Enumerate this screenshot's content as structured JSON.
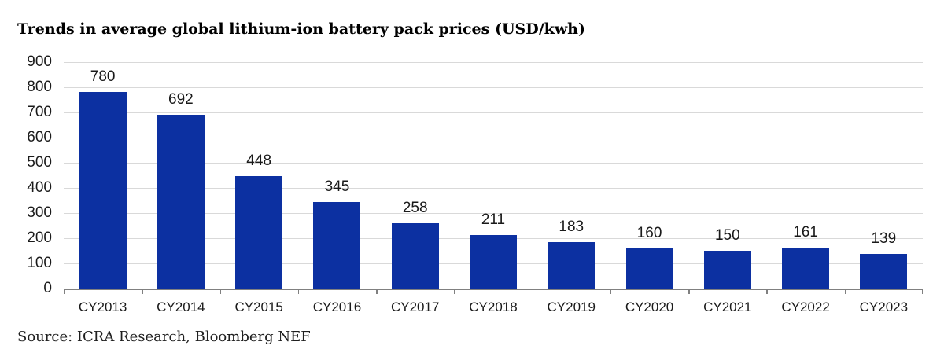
{
  "title": "Trends in average global lithium-ion battery pack prices (USD/kwh)",
  "source": "Source: ICRA Research, Bloomberg NEF",
  "colors": {
    "bar": "#0c30a1",
    "gridline": "#d9d9d9",
    "axis": "#808080",
    "label_text": "#1a1a1a",
    "title_text": "#000000"
  },
  "chart_data": {
    "type": "bar",
    "title": "Trends in average global lithium-ion battery pack prices (USD/kwh)",
    "categories": [
      "CY2013",
      "CY2014",
      "CY2015",
      "CY2016",
      "CY2017",
      "CY2018",
      "CY2019",
      "CY2020",
      "CY2021",
      "CY2022",
      "CY2023"
    ],
    "values": [
      780,
      692,
      448,
      345,
      258,
      211,
      183,
      160,
      150,
      161,
      139
    ],
    "data_labels": [
      780,
      692,
      448,
      345,
      258,
      211,
      183,
      160,
      150,
      161,
      139
    ],
    "xlabel": "",
    "ylabel": "",
    "ylim": [
      0,
      900
    ],
    "y_ticks": [
      0,
      100,
      200,
      300,
      400,
      500,
      600,
      700,
      800,
      900
    ],
    "grid": "horizontal",
    "legend": "none",
    "footnote": "Source: ICRA Research, Bloomberg NEF"
  }
}
